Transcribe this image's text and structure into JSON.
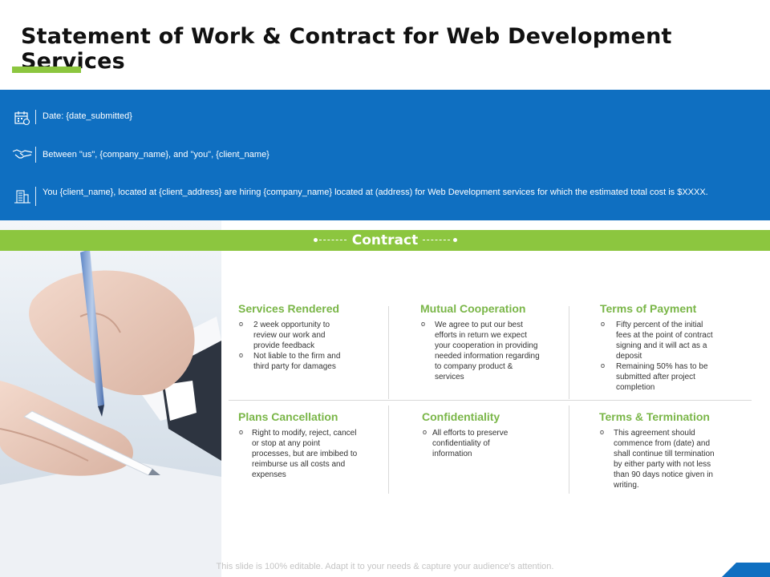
{
  "title": "Statement of Work & Contract for Web Development Services",
  "info": [
    {
      "icon": "calendar-icon",
      "text": "Date: {date_submitted}"
    },
    {
      "icon": "handshake-icon",
      "text": "Between \"us\", {company_name}, and \"you\", {client_name}"
    },
    {
      "icon": "building-icon",
      "text": "You {client_name}, located at {client_address} are hiring {company_name} located at (address) for Web Development services for which the estimated total cost is $XXXX."
    }
  ],
  "contract_label": "Contract",
  "sections": [
    {
      "title": "Services Rendered",
      "items": [
        "2 week opportunity to review our work and provide feedback",
        "Not liable to the firm and third party for damages"
      ]
    },
    {
      "title": "Mutual Cooperation",
      "items": [
        "We agree to put our best efforts in return we expect your cooperation in providing needed information regarding to company product & services"
      ]
    },
    {
      "title": "Terms of Payment",
      "items": [
        "Fifty percent of the initial fees at the point of contract signing and it will act as a deposit",
        "Remaining 50% has to be submitted after project completion"
      ]
    },
    {
      "title": "Plans Cancellation",
      "items": [
        "Right to modify, reject, cancel or stop at any point processes, but are imbibed to reimburse us all costs and expenses"
      ]
    },
    {
      "title": "Confidentiality",
      "items": [
        "All efforts to preserve confidentiality of information"
      ]
    },
    {
      "title": "Terms & Termination",
      "items": [
        "This agreement should commence from (date) and shall continue till termination by either party with not less than 90 days notice given in writing."
      ]
    }
  ],
  "footer": "This slide is 100% editable. Adapt it to your needs & capture your audience's attention.",
  "colors": {
    "blue": "#0f6fc1",
    "green": "#8cc63f",
    "section_title": "#7ab648"
  }
}
